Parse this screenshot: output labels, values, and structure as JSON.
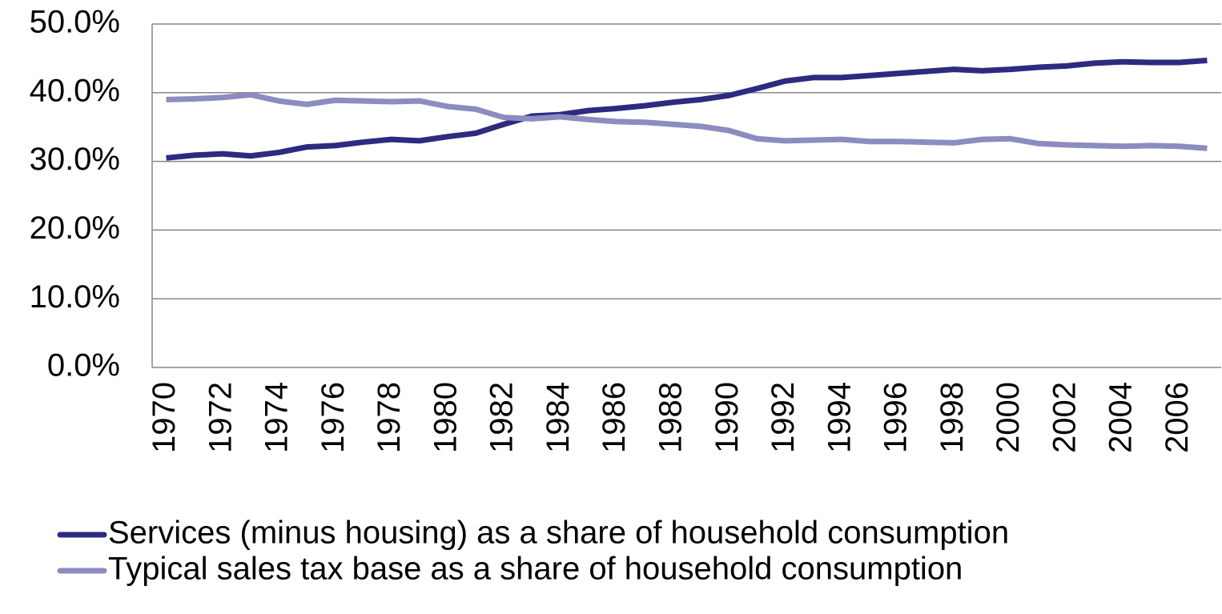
{
  "chart_data": {
    "type": "line",
    "categories": [
      "1970",
      null,
      "1972",
      null,
      "1974",
      null,
      "1976",
      null,
      "1978",
      null,
      "1980",
      null,
      "1982",
      null,
      "1984",
      null,
      "1986",
      null,
      "1988",
      null,
      "1990",
      null,
      "1992",
      null,
      "1994",
      null,
      "1996",
      null,
      "1998",
      null,
      "2000",
      null,
      "2002",
      null,
      "2004",
      null,
      "2006",
      null
    ],
    "series": [
      {
        "name": "Services (minus housing) as a share of household consumption",
        "color": "#2e2a7f",
        "values": [
          30.5,
          30.9,
          31.1,
          30.8,
          31.3,
          32.1,
          32.3,
          32.8,
          33.2,
          33.0,
          33.6,
          34.1,
          35.4,
          36.6,
          36.8,
          37.4,
          37.7,
          38.1,
          38.6,
          39.0,
          39.6,
          40.6,
          41.7,
          42.2,
          42.2,
          42.5,
          42.8,
          43.1,
          43.4,
          43.2,
          43.4,
          43.7,
          43.9,
          44.3,
          44.5,
          44.4,
          44.4,
          44.7
        ]
      },
      {
        "name": "Typical sales tax base as a share of household consumption",
        "color": "#8c8cc0",
        "values": [
          39.0,
          39.1,
          39.3,
          39.7,
          38.8,
          38.3,
          38.9,
          38.8,
          38.7,
          38.8,
          38.0,
          37.6,
          36.4,
          36.2,
          36.5,
          36.1,
          35.8,
          35.7,
          35.4,
          35.1,
          34.5,
          33.3,
          33.0,
          33.1,
          33.2,
          32.9,
          32.9,
          32.8,
          32.7,
          33.2,
          33.3,
          32.6,
          32.4,
          32.3,
          32.2,
          32.3,
          32.2,
          31.9
        ]
      }
    ],
    "ylim": [
      0,
      50
    ],
    "yticks": [
      {
        "value": 0,
        "label": "0.0%"
      },
      {
        "value": 10,
        "label": "10.0%"
      },
      {
        "value": 20,
        "label": "20.0%"
      },
      {
        "value": 30,
        "label": "30.0%"
      },
      {
        "value": 40,
        "label": "40.0%"
      },
      {
        "value": 50,
        "label": "50.0%"
      }
    ],
    "grid": true,
    "legend": "bottom"
  }
}
